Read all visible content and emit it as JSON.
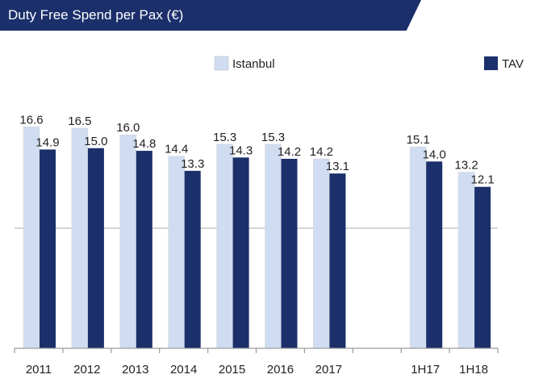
{
  "title": "Duty Free Spend per Pax (€)",
  "colors": {
    "banner": "#1b2f6b",
    "istanbul": "#cfdcf1",
    "tav": "#1b2f6b"
  },
  "chart_data": {
    "type": "bar",
    "title": "Duty Free Spend per Pax (€)",
    "categories": [
      "2011",
      "2012",
      "2013",
      "2014",
      "2015",
      "2016",
      "2017",
      "",
      "1H17",
      "1H18"
    ],
    "series": [
      {
        "name": "Istanbul",
        "color": "#cfdcf1",
        "values": [
          16.6,
          16.5,
          16.0,
          14.4,
          15.3,
          15.3,
          14.2,
          null,
          15.1,
          13.2
        ]
      },
      {
        "name": "TAV",
        "color": "#1b2f6b",
        "values": [
          14.9,
          15.0,
          14.8,
          13.3,
          14.3,
          14.2,
          13.1,
          null,
          14.0,
          12.1
        ]
      }
    ],
    "ylim": [
      0,
      18
    ],
    "legend": "top",
    "grid": "single midline"
  }
}
